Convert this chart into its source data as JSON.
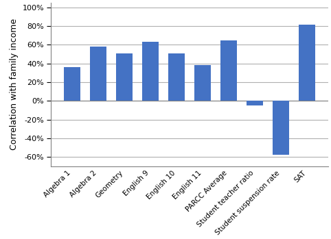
{
  "categories": [
    "Algebra 1",
    "Algebra 2",
    "Geometry",
    "English 9",
    "English 10",
    "English 11",
    "PARCC Average",
    "Student teacher ratio",
    "Student suspension rate",
    "SAT"
  ],
  "values": [
    0.36,
    0.58,
    0.51,
    0.63,
    0.51,
    0.38,
    0.65,
    -0.05,
    -0.58,
    0.82
  ],
  "bar_color": "#4472C4",
  "ylabel": "Correlation with family income",
  "ylim": [
    -0.7,
    1.05
  ],
  "yticks": [
    -0.6,
    -0.4,
    -0.2,
    0.0,
    0.2,
    0.4,
    0.6,
    0.8,
    1.0
  ],
  "background_color": "#ffffff",
  "grid_color": "#b0b0b0",
  "ylabel_fontsize": 9,
  "tick_fontsize": 8,
  "xlabel_fontsize": 7.5
}
